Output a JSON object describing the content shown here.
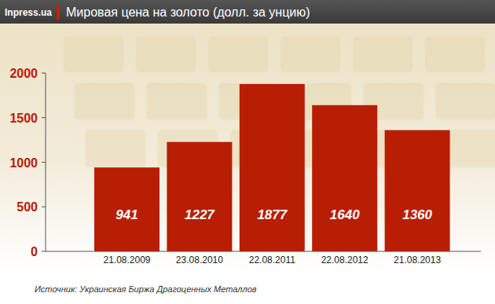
{
  "chart_data": {
    "type": "bar",
    "title": "Мировая цена на золото (долл. за унцию)",
    "annotations": [
      "Inpress.ua",
      "Источник: Украинская Биржа Драгоценных Металлов"
    ],
    "categories": [
      "21.08.2009",
      "23.08.2010",
      "22.08.2011",
      "22.08.2012",
      "21.08.2013"
    ],
    "values": [
      941,
      1227,
      1877,
      1640,
      1360
    ],
    "color": "#b81e03",
    "ylim": [
      0,
      2000
    ],
    "yticks": [
      0,
      500,
      1000,
      1500,
      2000
    ],
    "grid": false,
    "data_labels": true
  }
}
